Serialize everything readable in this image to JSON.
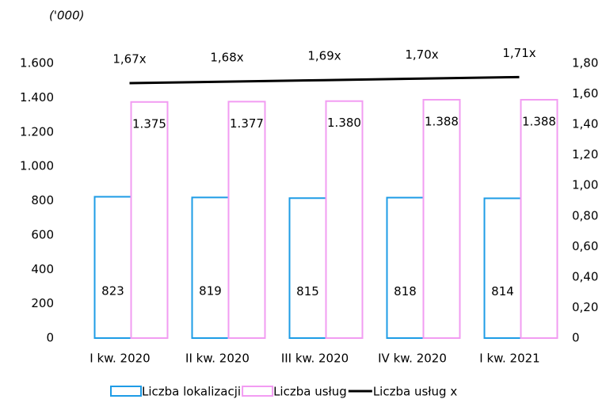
{
  "chart_data": {
    "type": "bar_line",
    "unit_label": "('000)",
    "categories": [
      "I kw. 2020",
      "II kw. 2020",
      "III kw. 2020",
      "IV kw. 2020",
      "I kw. 2021"
    ],
    "series": [
      {
        "name": "Liczba lokalizacji",
        "color": "#1e9ce6",
        "type": "bar",
        "values": [
          823,
          819,
          815,
          818,
          814
        ]
      },
      {
        "name": "Liczba usług",
        "color": "#f29cf2",
        "type": "bar",
        "values": [
          1375,
          1377,
          1380,
          1388,
          1388
        ],
        "value_labels": [
          "1.375",
          "1.377",
          "1.380",
          "1.388",
          "1.388"
        ]
      },
      {
        "name": "Liczba usług x",
        "color": "#000000",
        "type": "line",
        "axis": "y2",
        "values": [
          1.67,
          1.68,
          1.69,
          1.7,
          1.71
        ],
        "value_labels": [
          "1,67x",
          "1,68x",
          "1,69x",
          "1,70x",
          "1,71x"
        ]
      }
    ],
    "ylim": [
      0,
      1600
    ],
    "yticks": [
      0,
      200,
      400,
      600,
      800,
      {
        "value": 1000,
        "label": "1.000"
      },
      {
        "value": 1200,
        "label": "1.200"
      },
      {
        "value": 1400,
        "label": "1.400"
      },
      {
        "value": 1600,
        "label": "1.600"
      }
    ],
    "y2lim": [
      0,
      1.8
    ],
    "y2ticks": [
      0,
      {
        "value": 0.2,
        "label": "0,20"
      },
      {
        "value": 0.4,
        "label": "0,40"
      },
      {
        "value": 0.6,
        "label": "0,60"
      },
      {
        "value": 0.8,
        "label": "0,80"
      },
      {
        "value": 1.0,
        "label": "1,00"
      },
      {
        "value": 1.2,
        "label": "1,20"
      },
      {
        "value": 1.4,
        "label": "1,40"
      },
      {
        "value": 1.6,
        "label": "1,60"
      },
      {
        "value": 1.8,
        "label": "1,80"
      }
    ],
    "grid": false,
    "legend": "bottom"
  }
}
